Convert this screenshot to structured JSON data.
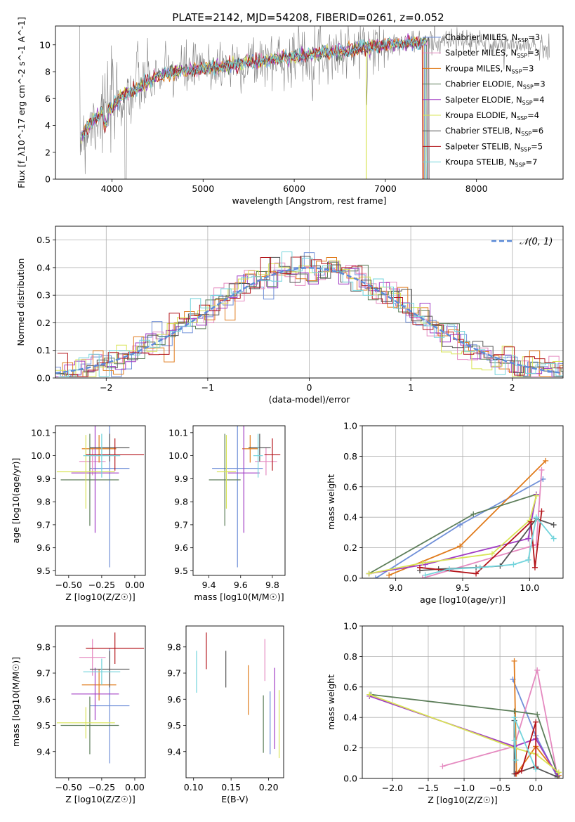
{
  "figure": {
    "title": "PLATE=2142, MJD=54208, FIBERID=0261, z=0.052"
  },
  "series_styles": [
    {
      "name": "Chabrier MILES",
      "nssp": "3",
      "color": "#6f8fd8"
    },
    {
      "name": "Salpeter MILES",
      "nssp": "3",
      "color": "#e58ac0"
    },
    {
      "name": "Kroupa MILES",
      "nssp": "3",
      "color": "#e07b1c"
    },
    {
      "name": "Chabrier ELODIE",
      "nssp": "3",
      "color": "#5d7e5a"
    },
    {
      "name": "Salpeter ELODIE",
      "nssp": "4",
      "color": "#a13cc4"
    },
    {
      "name": "Kroupa ELODIE",
      "nssp": "4",
      "color": "#d8e455"
    },
    {
      "name": "Chabrier STELIB",
      "nssp": "6",
      "color": "#555555"
    },
    {
      "name": "Salpeter STELIB",
      "nssp": "5",
      "color": "#b3141a"
    },
    {
      "name": "Kroupa STELIB",
      "nssp": "7",
      "color": "#73d4dc"
    }
  ],
  "chart_data": [
    {
      "id": "spectrum",
      "type": "line",
      "xlabel": "wavelength [Angstrom, rest frame]",
      "ylabel": "Flux [f_λ10^-17 erg cm^-2 s^-1 A^-1]",
      "xlim": [
        3380,
        8950
      ],
      "ylim": [
        0,
        11.4
      ],
      "xticks": [
        4000,
        5000,
        6000,
        7000,
        8000
      ],
      "yticks": [
        0,
        2,
        4,
        6,
        8,
        10
      ],
      "data_color": "#808080",
      "continuum": {
        "x": [
          3650,
          3700,
          3800,
          3900,
          4000,
          4100,
          4300,
          4500,
          4700,
          5000,
          5300,
          5600,
          6000,
          6300,
          6600,
          7000,
          7200,
          7400,
          7600,
          7800,
          8000,
          8300,
          8800
        ],
        "y": [
          3.0,
          3.6,
          4.4,
          5.0,
          5.3,
          6.2,
          6.8,
          7.7,
          8.0,
          8.2,
          8.5,
          8.8,
          9.1,
          9.4,
          9.6,
          10.0,
          10.1,
          10.2,
          10.3,
          10.3,
          10.2,
          10.0,
          9.8
        ]
      },
      "model_end": [
        7430,
        7470,
        7420,
        7460,
        7450,
        7440,
        7480,
        7410,
        7450
      ]
    },
    {
      "id": "residuals",
      "type": "histogram",
      "xlabel": "(data-model)/error",
      "ylabel": "Normed distribution",
      "xlim": [
        -2.5,
        2.5
      ],
      "ylim": [
        0,
        0.55
      ],
      "xticks": [
        -2,
        -1,
        0,
        1,
        2
      ],
      "yticks": [
        0.0,
        0.1,
        0.2,
        0.3,
        0.4,
        0.5
      ],
      "grid": true,
      "bin_width": 0.1,
      "reference": {
        "label": "N(0,1)",
        "mu": 0,
        "sigma": 1,
        "color": "#5b8bd9"
      }
    },
    {
      "id": "age_vs_Z",
      "type": "errorbar",
      "xlabel": "Z [log10(Z/Z☉)]",
      "ylabel": "age [log10(age/yr)]",
      "xlim": [
        -0.6,
        0.08
      ],
      "ylim": [
        9.48,
        10.13
      ],
      "xticks": [
        -0.5,
        -0.25,
        0.0
      ],
      "yticks": [
        9.5,
        9.6,
        9.7,
        9.8,
        9.9,
        10.0,
        10.1
      ],
      "points": [
        {
          "x": -0.19,
          "xerr": 0.15,
          "y": 9.945,
          "yerr": 0.43
        },
        {
          "x": -0.32,
          "xerr": 0.1,
          "y": 9.975,
          "yerr": 0.06
        },
        {
          "x": -0.27,
          "xerr": 0.13,
          "y": 10.03,
          "yerr": 0.06
        },
        {
          "x": -0.34,
          "xerr": 0.22,
          "y": 9.895,
          "yerr": 0.2
        },
        {
          "x": -0.3,
          "xerr": 0.18,
          "y": 9.925,
          "yerr": 0.26
        },
        {
          "x": -0.37,
          "xerr": 0.22,
          "y": 9.93,
          "yerr": 0.16
        },
        {
          "x": -0.19,
          "xerr": 0.15,
          "y": 10.035,
          "yerr": 0.06
        },
        {
          "x": -0.15,
          "xerr": 0.22,
          "y": 10.005,
          "yerr": 0.07
        },
        {
          "x": -0.25,
          "xerr": 0.14,
          "y": 10.0,
          "yerr": 0.095
        }
      ]
    },
    {
      "id": "age_vs_mass",
      "type": "errorbar",
      "xlabel": "mass [log10(M/M☉)]",
      "ylabel": "",
      "xlim": [
        9.3,
        9.88
      ],
      "ylim": [
        9.48,
        10.13
      ],
      "xticks": [
        9.4,
        9.6,
        9.8
      ],
      "yticks": [
        9.5,
        9.6,
        9.7,
        9.8,
        9.9,
        10.0,
        10.1
      ],
      "points": [
        {
          "x": 9.58,
          "xerr": 0.16,
          "y": 9.945,
          "yerr": 0.43
        },
        {
          "x": 9.76,
          "xerr": 0.07,
          "y": 9.975,
          "yerr": 0.06
        },
        {
          "x": 9.66,
          "xerr": 0.05,
          "y": 10.03,
          "yerr": 0.06
        },
        {
          "x": 9.5,
          "xerr": 0.1,
          "y": 9.895,
          "yerr": 0.2
        },
        {
          "x": 9.62,
          "xerr": 0.1,
          "y": 9.925,
          "yerr": 0.26
        },
        {
          "x": 9.51,
          "xerr": 0.06,
          "y": 9.93,
          "yerr": 0.16
        },
        {
          "x": 9.72,
          "xerr": 0.07,
          "y": 10.035,
          "yerr": 0.06
        },
        {
          "x": 9.8,
          "xerr": 0.05,
          "y": 10.005,
          "yerr": 0.07
        },
        {
          "x": 9.71,
          "xerr": 0.03,
          "y": 10.0,
          "yerr": 0.095
        }
      ]
    },
    {
      "id": "massweight_vs_age",
      "type": "line",
      "xlabel": "age [log10(age/yr)]",
      "ylabel": "mass weight",
      "xlim": [
        8.75,
        10.25
      ],
      "ylim": [
        0,
        1
      ],
      "xticks": [
        9.0,
        9.5,
        10.0
      ],
      "yticks": [
        0.0,
        0.2,
        0.4,
        0.6,
        0.8,
        1.0
      ],
      "grid": true,
      "series": [
        {
          "x": [
            8.85,
            9.48,
            10.1
          ],
          "y": [
            0.0,
            0.35,
            0.65
          ]
        },
        {
          "x": [
            9.2,
            10.05,
            10.09
          ],
          "y": [
            0.0,
            0.22,
            0.71
          ]
        },
        {
          "x": [
            8.95,
            9.48,
            10.12
          ],
          "y": [
            0.02,
            0.21,
            0.77
          ]
        },
        {
          "x": [
            8.8,
            9.58,
            10.05
          ],
          "y": [
            0.03,
            0.42,
            0.55
          ]
        },
        {
          "x": [
            8.8,
            9.22,
            9.99,
            10.05
          ],
          "y": [
            0.03,
            0.09,
            0.26,
            0.55
          ]
        },
        {
          "x": [
            8.8,
            9.2,
            9.72,
            10.0,
            10.05
          ],
          "y": [
            0.03,
            0.1,
            0.16,
            0.38,
            0.54
          ]
        },
        {
          "x": [
            9.18,
            9.32,
            9.6,
            9.78,
            10.05,
            10.18
          ],
          "y": [
            0.05,
            0.06,
            0.07,
            0.08,
            0.39,
            0.35
          ]
        },
        {
          "x": [
            9.18,
            9.6,
            10.01,
            10.04,
            10.09
          ],
          "y": [
            0.07,
            0.03,
            0.37,
            0.07,
            0.44
          ]
        },
        {
          "x": [
            9.22,
            9.4,
            9.63,
            9.88,
            9.99,
            10.05,
            10.18
          ],
          "y": [
            0.02,
            0.06,
            0.07,
            0.09,
            0.12,
            0.4,
            0.26
          ]
        }
      ]
    },
    {
      "id": "mass_vs_Z",
      "type": "errorbar",
      "xlabel": "Z [log10(Z/Z☉)]",
      "ylabel": "mass [log10(M/M☉)]",
      "xlim": [
        -0.6,
        0.08
      ],
      "ylim": [
        9.3,
        9.88
      ],
      "xticks": [
        -0.5,
        -0.25,
        0.0
      ],
      "yticks": [
        9.4,
        9.5,
        9.6,
        9.7,
        9.8
      ],
      "points": [
        {
          "x": -0.19,
          "xerr": 0.15,
          "y": 9.575,
          "yerr": 0.22
        },
        {
          "x": -0.32,
          "xerr": 0.1,
          "y": 9.76,
          "yerr": 0.07
        },
        {
          "x": -0.27,
          "xerr": 0.13,
          "y": 9.655,
          "yerr": 0.06
        },
        {
          "x": -0.34,
          "xerr": 0.22,
          "y": 9.5,
          "yerr": 0.11
        },
        {
          "x": -0.3,
          "xerr": 0.18,
          "y": 9.62,
          "yerr": 0.1
        },
        {
          "x": -0.37,
          "xerr": 0.22,
          "y": 9.51,
          "yerr": 0.06
        },
        {
          "x": -0.19,
          "xerr": 0.15,
          "y": 9.715,
          "yerr": 0.07
        },
        {
          "x": -0.15,
          "xerr": 0.22,
          "y": 9.795,
          "yerr": 0.06
        },
        {
          "x": -0.25,
          "xerr": 0.14,
          "y": 9.705,
          "yerr": 0.05
        }
      ]
    },
    {
      "id": "mass_vs_EBV",
      "type": "errorbar",
      "xlabel": "E(B-V)",
      "ylabel": "",
      "xlim": [
        0.09,
        0.22
      ],
      "ylim": [
        9.3,
        9.88
      ],
      "xticks": [
        0.1,
        0.15,
        0.2
      ],
      "yticks": [
        9.4,
        9.5,
        9.6,
        9.7,
        9.8
      ],
      "points": [
        {
          "x": 0.202,
          "y": 9.51,
          "yerr": 0.12
        },
        {
          "x": 0.195,
          "y": 9.75,
          "yerr": 0.08
        },
        {
          "x": 0.173,
          "y": 9.635,
          "yerr": 0.095
        },
        {
          "x": 0.193,
          "y": 9.505,
          "yerr": 0.11
        },
        {
          "x": 0.208,
          "y": 9.565,
          "yerr": 0.155
        },
        {
          "x": 0.214,
          "y": 9.505,
          "yerr": 0.13
        },
        {
          "x": 0.143,
          "y": 9.715,
          "yerr": 0.07
        },
        {
          "x": 0.117,
          "y": 9.785,
          "yerr": 0.07
        },
        {
          "x": 0.104,
          "y": 9.705,
          "yerr": 0.08
        }
      ]
    },
    {
      "id": "massweight_vs_Z",
      "type": "line",
      "xlabel": "Z [log10(Z/Z☉)]",
      "ylabel": "mass weight",
      "xlim": [
        -2.42,
        0.38
      ],
      "ylim": [
        0,
        1
      ],
      "xticks": [
        -2.0,
        -1.5,
        -1.0,
        -0.5,
        0.0
      ],
      "yticks": [
        0.0,
        0.2,
        0.4,
        0.6,
        0.8,
        1.0
      ],
      "grid": true,
      "series": [
        {
          "x": [
            -0.32,
            0.0,
            0.3
          ],
          "y": [
            0.65,
            0.28,
            0.01
          ]
        },
        {
          "x": [
            -1.3,
            -0.3,
            0.02,
            0.3
          ],
          "y": [
            0.08,
            0.21,
            0.71,
            0.02
          ]
        },
        {
          "x": [
            -0.3,
            -0.27,
            0.0,
            0.32
          ],
          "y": [
            0.77,
            0.03,
            0.21,
            0.02
          ]
        },
        {
          "x": [
            -2.3,
            -0.3,
            0.02,
            0.3
          ],
          "y": [
            0.55,
            0.44,
            0.42,
            0.03
          ]
        },
        {
          "x": [
            -2.32,
            -0.3,
            0.0,
            0.3
          ],
          "y": [
            0.54,
            0.21,
            0.26,
            0.02
          ]
        },
        {
          "x": [
            -2.32,
            -0.3,
            0.0,
            0.32
          ],
          "y": [
            0.55,
            0.2,
            0.16,
            0.04
          ]
        },
        {
          "x": [
            -0.3,
            -0.3,
            0.0,
            0.0,
            0.3
          ],
          "y": [
            0.38,
            0.03,
            0.08,
            0.07,
            0.01
          ]
        },
        {
          "x": [
            -0.28,
            -0.2,
            0.0,
            0.0
          ],
          "y": [
            0.03,
            0.05,
            0.37,
            0.07
          ]
        },
        {
          "x": [
            -0.3,
            -0.28,
            -0.3,
            0.0
          ],
          "y": [
            0.25,
            0.12,
            0.4,
            0.06
          ]
        }
      ]
    }
  ]
}
